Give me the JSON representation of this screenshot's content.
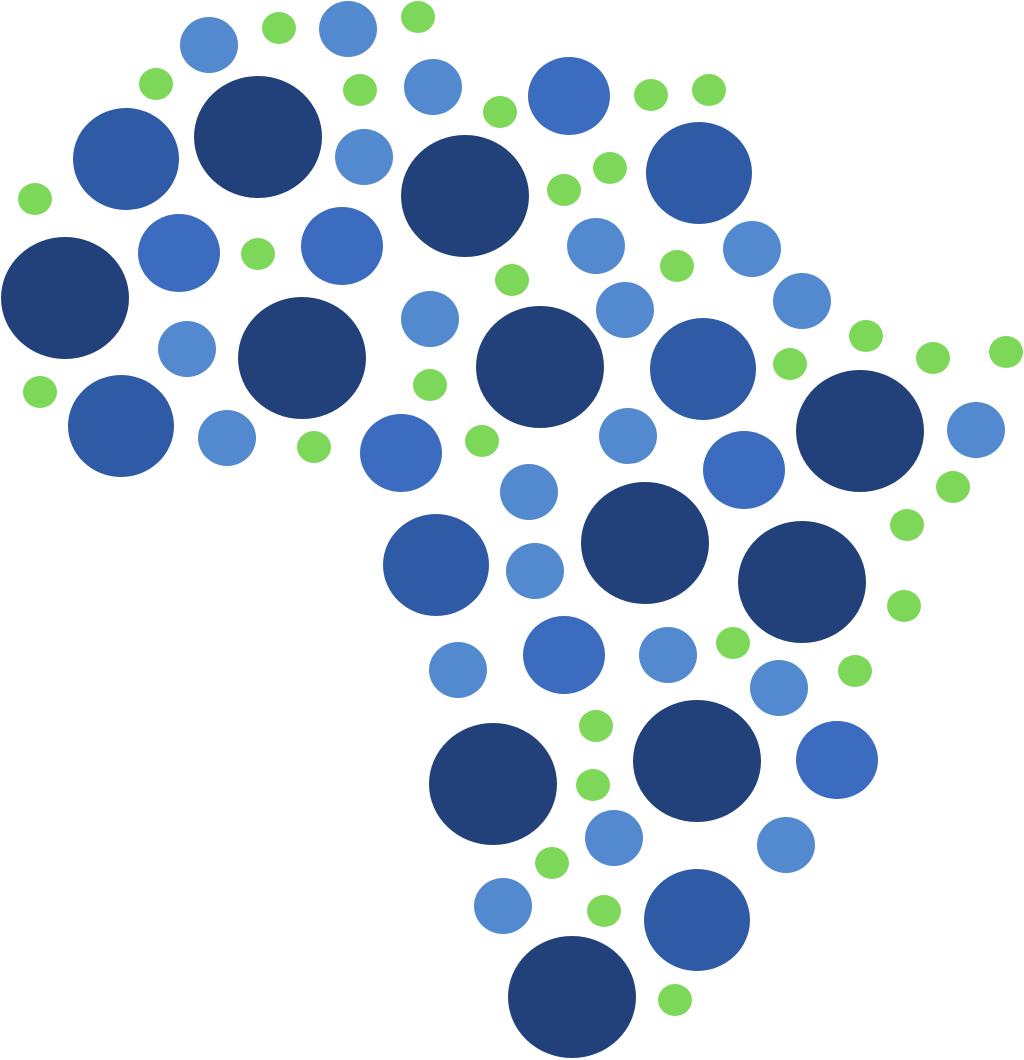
{
  "figure": {
    "subject": "africa-dot-map",
    "palette": {
      "navy": "#22417a",
      "royal": "#2f5aa6",
      "medium": "#3c6cbf",
      "light": "#5289cf",
      "green": "#7dd85a"
    }
  }
}
